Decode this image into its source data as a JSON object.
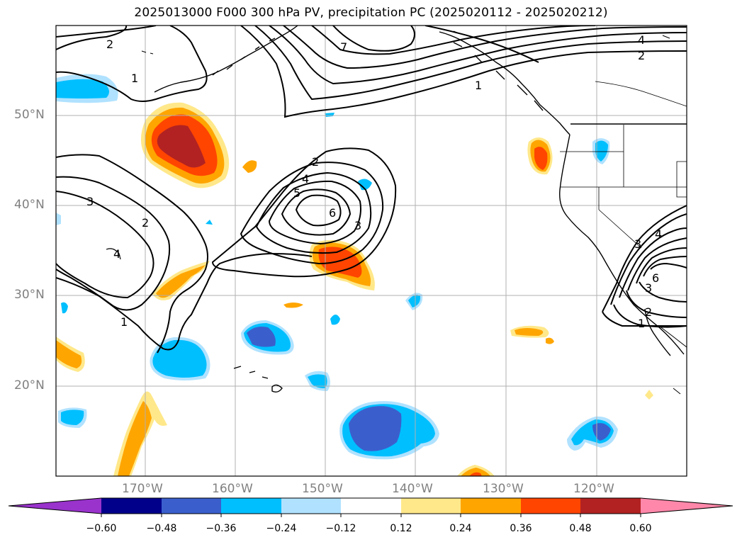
{
  "title": "2025013000 F000 300 hPa PV, precipitation PC (2025020112 - 2025020212)",
  "lat_labels": [
    "50°N",
    "40°N",
    "30°N",
    "20°N"
  ],
  "lon_labels": [
    "170°W",
    "160°W",
    "150°W",
    "140°W",
    "130°W",
    "120°W"
  ],
  "colorbar": {
    "tick_labels": [
      "−0.60",
      "−0.48",
      "−0.36",
      "−0.24",
      "−0.12",
      "0.12",
      "0.24",
      "0.36",
      "0.48",
      "0.60"
    ],
    "colors": [
      "#9933cc",
      "#00008b",
      "#3a5fcd",
      "#00bfff",
      "#b0e2ff",
      "#ffffff",
      "#ffe88a",
      "#ffa500",
      "#ff4500",
      "#b22222",
      "#ff88aa"
    ]
  },
  "contour_labels": [
    "2",
    "1",
    "7",
    "4",
    "2",
    "1",
    "2",
    "4",
    "5",
    "6",
    "3",
    "3",
    "2",
    "1",
    "4",
    "3",
    "6",
    "3",
    "2",
    "1",
    "4"
  ],
  "fill_colors": {
    "neg_light": "#b0e2ff",
    "neg_mid": "#00bfff",
    "neg_dark": "#3a5fcd",
    "pos_light": "#ffe88a",
    "pos_mid": "#ffa500",
    "pos_dark": "#ff4500",
    "pos_darkest": "#b22222"
  }
}
